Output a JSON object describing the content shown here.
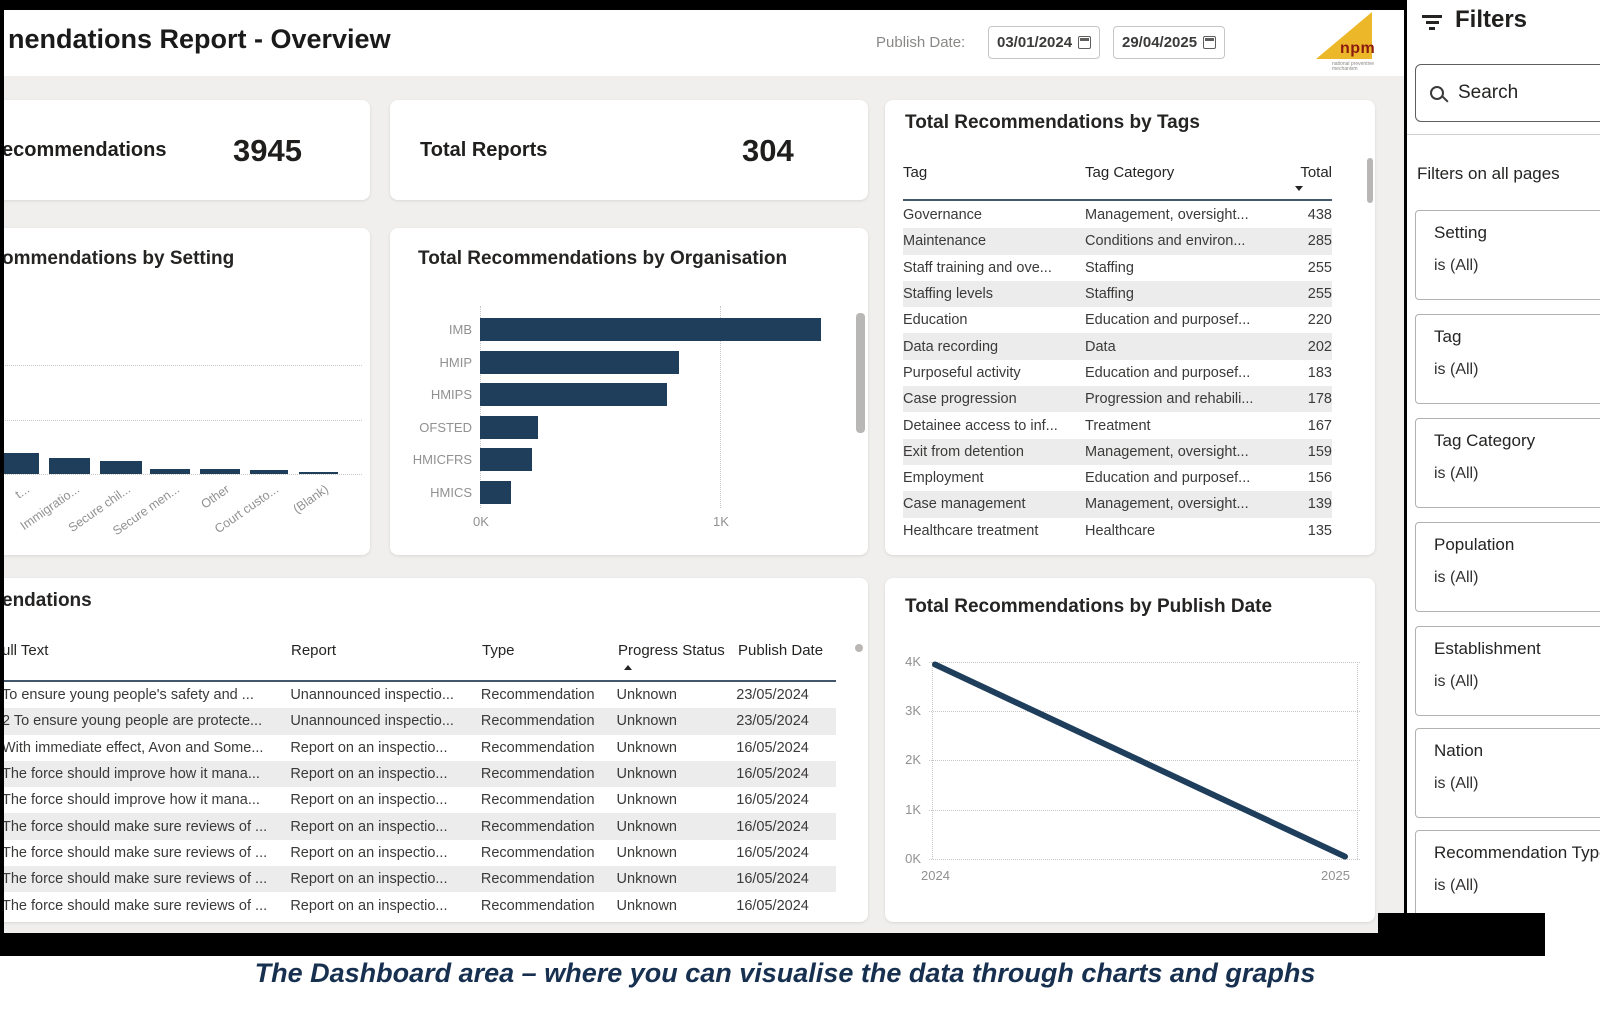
{
  "header": {
    "title": "nendations Report - Overview",
    "publish_date_label": "Publish Date:",
    "date_from": "03/01/2024",
    "date_to": "29/04/2025",
    "logo": {
      "text": "npm",
      "subtext": "national preventive mechanism"
    }
  },
  "kpi": {
    "recommendations": {
      "label": "ecommendations",
      "value": "3945"
    },
    "reports": {
      "label": "Total Reports",
      "value": "304"
    }
  },
  "tags_table": {
    "title": "Total Recommendations by Tags",
    "columns": [
      "Tag",
      "Tag Category",
      "Total"
    ],
    "rows": [
      [
        "Governance",
        "Management, oversight...",
        "438"
      ],
      [
        "Maintenance",
        "Conditions and environ...",
        "285"
      ],
      [
        "Staff training and ove...",
        "Staffing",
        "255"
      ],
      [
        "Staffing levels",
        "Staffing",
        "255"
      ],
      [
        "Education",
        "Education and purposef...",
        "220"
      ],
      [
        "Data recording",
        "Data",
        "202"
      ],
      [
        "Purposeful activity",
        "Education and purposef...",
        "183"
      ],
      [
        "Case progression",
        "Progression and rehabili...",
        "178"
      ],
      [
        "Detainee access to inf...",
        "Treatment",
        "167"
      ],
      [
        "Exit from detention",
        "Management, oversight...",
        "159"
      ],
      [
        "Employment",
        "Education and purposef...",
        "156"
      ],
      [
        "Case management",
        "Management, oversight...",
        "139"
      ],
      [
        "Healthcare treatment",
        "Healthcare",
        "135"
      ]
    ]
  },
  "setting_chart": {
    "type": "bar",
    "title": "ommendations by Setting",
    "categories": [
      "t...",
      "Immigratio...",
      "Secure chil...",
      "Secure men...",
      "Other",
      "Court custo...",
      "(Blank)"
    ],
    "values": [
      380,
      290,
      250,
      100,
      95,
      80,
      25
    ],
    "ylim": [
      0,
      2000
    ]
  },
  "org_chart": {
    "type": "bar",
    "title": "Total Recommendations by Organisation",
    "categories": [
      "IMB",
      "HMIP",
      "HMIPS",
      "OFSTED",
      "HMICFRS",
      "HMICS"
    ],
    "values": [
      1420,
      830,
      780,
      240,
      215,
      130
    ],
    "x_ticks": [
      "0K",
      "1K"
    ]
  },
  "recs_table": {
    "title": "endations",
    "columns": [
      "ull Text",
      "Report",
      "Type",
      "Progress Status",
      "Publish Date"
    ],
    "rows": [
      [
        "To ensure young people's safety and ...",
        "Unannounced inspectio...",
        "Recommendation",
        "Unknown",
        "23/05/2024"
      ],
      [
        "2 To ensure young people are protecte...",
        "Unannounced inspectio...",
        "Recommendation",
        "Unknown",
        "23/05/2024"
      ],
      [
        "With immediate effect, Avon and Some...",
        "Report on an inspectio...",
        "Recommendation",
        "Unknown",
        "16/05/2024"
      ],
      [
        "The force should improve how it mana...",
        "Report on an inspectio...",
        "Recommendation",
        "Unknown",
        "16/05/2024"
      ],
      [
        "The force should improve how it mana...",
        "Report on an inspectio...",
        "Recommendation",
        "Unknown",
        "16/05/2024"
      ],
      [
        "The force should make sure reviews of ...",
        "Report on an inspectio...",
        "Recommendation",
        "Unknown",
        "16/05/2024"
      ],
      [
        "The force should make sure reviews of ...",
        "Report on an inspectio...",
        "Recommendation",
        "Unknown",
        "16/05/2024"
      ],
      [
        "The force should make sure reviews of ...",
        "Report on an inspectio...",
        "Recommendation",
        "Unknown",
        "16/05/2024"
      ],
      [
        "The force should make sure reviews of ...",
        "Report on an inspectio...",
        "Recommendation",
        "Unknown",
        "16/05/2024"
      ]
    ]
  },
  "date_chart": {
    "type": "line",
    "title": "Total Recommendations by Publish Date",
    "y_ticks": [
      "4K",
      "3K",
      "2K",
      "1K",
      "0K"
    ],
    "x_ticks": [
      "2024",
      "2025"
    ],
    "points": [
      [
        2024,
        3950
      ],
      [
        2025,
        50
      ]
    ],
    "ylim": [
      0,
      4000
    ],
    "line_color": "#1E3E5C"
  },
  "filters": {
    "title": "Filters",
    "search_placeholder": "Search",
    "section_label": "Filters on all pages",
    "items": [
      {
        "name": "Setting",
        "value": "is (All)"
      },
      {
        "name": "Tag",
        "value": "is (All)"
      },
      {
        "name": "Tag Category",
        "value": "is (All)"
      },
      {
        "name": "Population",
        "value": "is (All)"
      },
      {
        "name": "Establishment",
        "value": "is (All)"
      },
      {
        "name": "Nation",
        "value": "is (All)"
      },
      {
        "name": "Recommendation Type",
        "value": "is (All)"
      }
    ]
  },
  "caption": "The Dashboard area – where you can visualise the data through charts and graphs",
  "colors": {
    "accent": "#1E3E5C",
    "canvas": "#f0efee",
    "caption": "#173050",
    "logo_yellow": "#ecb82a"
  }
}
